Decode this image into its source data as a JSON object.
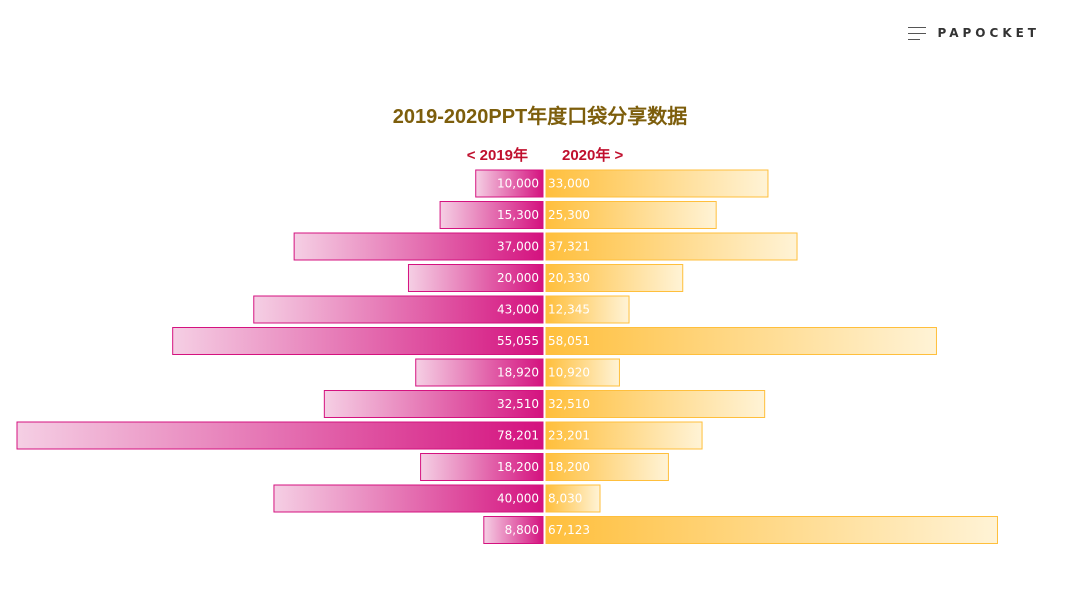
{
  "brand": {
    "name": "PAPOCKET",
    "icon": "menu-icon"
  },
  "colors": {
    "left_bar_dark": "#d4127f",
    "left_bar_light": "#f5cfe4",
    "right_bar_dark": "#ffbf3c",
    "right_bar_light": "#fff3d6",
    "title": "#7d5e0c",
    "legend": "#c0102e"
  },
  "chart_data": {
    "type": "bar",
    "orientation": "horizontal-butterfly",
    "title": "2019-2020PPT年度口袋分享数据",
    "legend_left": "< 2019年",
    "legend_right": "2020年 >",
    "series": [
      {
        "name": "2019年",
        "values": [
          10000,
          15300,
          37000,
          20000,
          43000,
          55055,
          18920,
          32510,
          78201,
          18200,
          40000,
          8800
        ],
        "labels": [
          "10,000",
          "15,300",
          "37,000",
          "20,000",
          "43,000",
          "55,055",
          "18,920",
          "32,510",
          "78,201",
          "18,200",
          "40,000",
          "8,800"
        ]
      },
      {
        "name": "2020年",
        "values": [
          33000,
          25300,
          37321,
          20330,
          12345,
          58051,
          10920,
          32510,
          23201,
          18200,
          8030,
          67123
        ],
        "labels": [
          "33,000",
          "25,300",
          "37,321",
          "20,330",
          "12,345",
          "58,051",
          "10,920",
          "32,510",
          "23,201",
          "18,200",
          "8,030",
          "67,123"
        ]
      }
    ]
  }
}
